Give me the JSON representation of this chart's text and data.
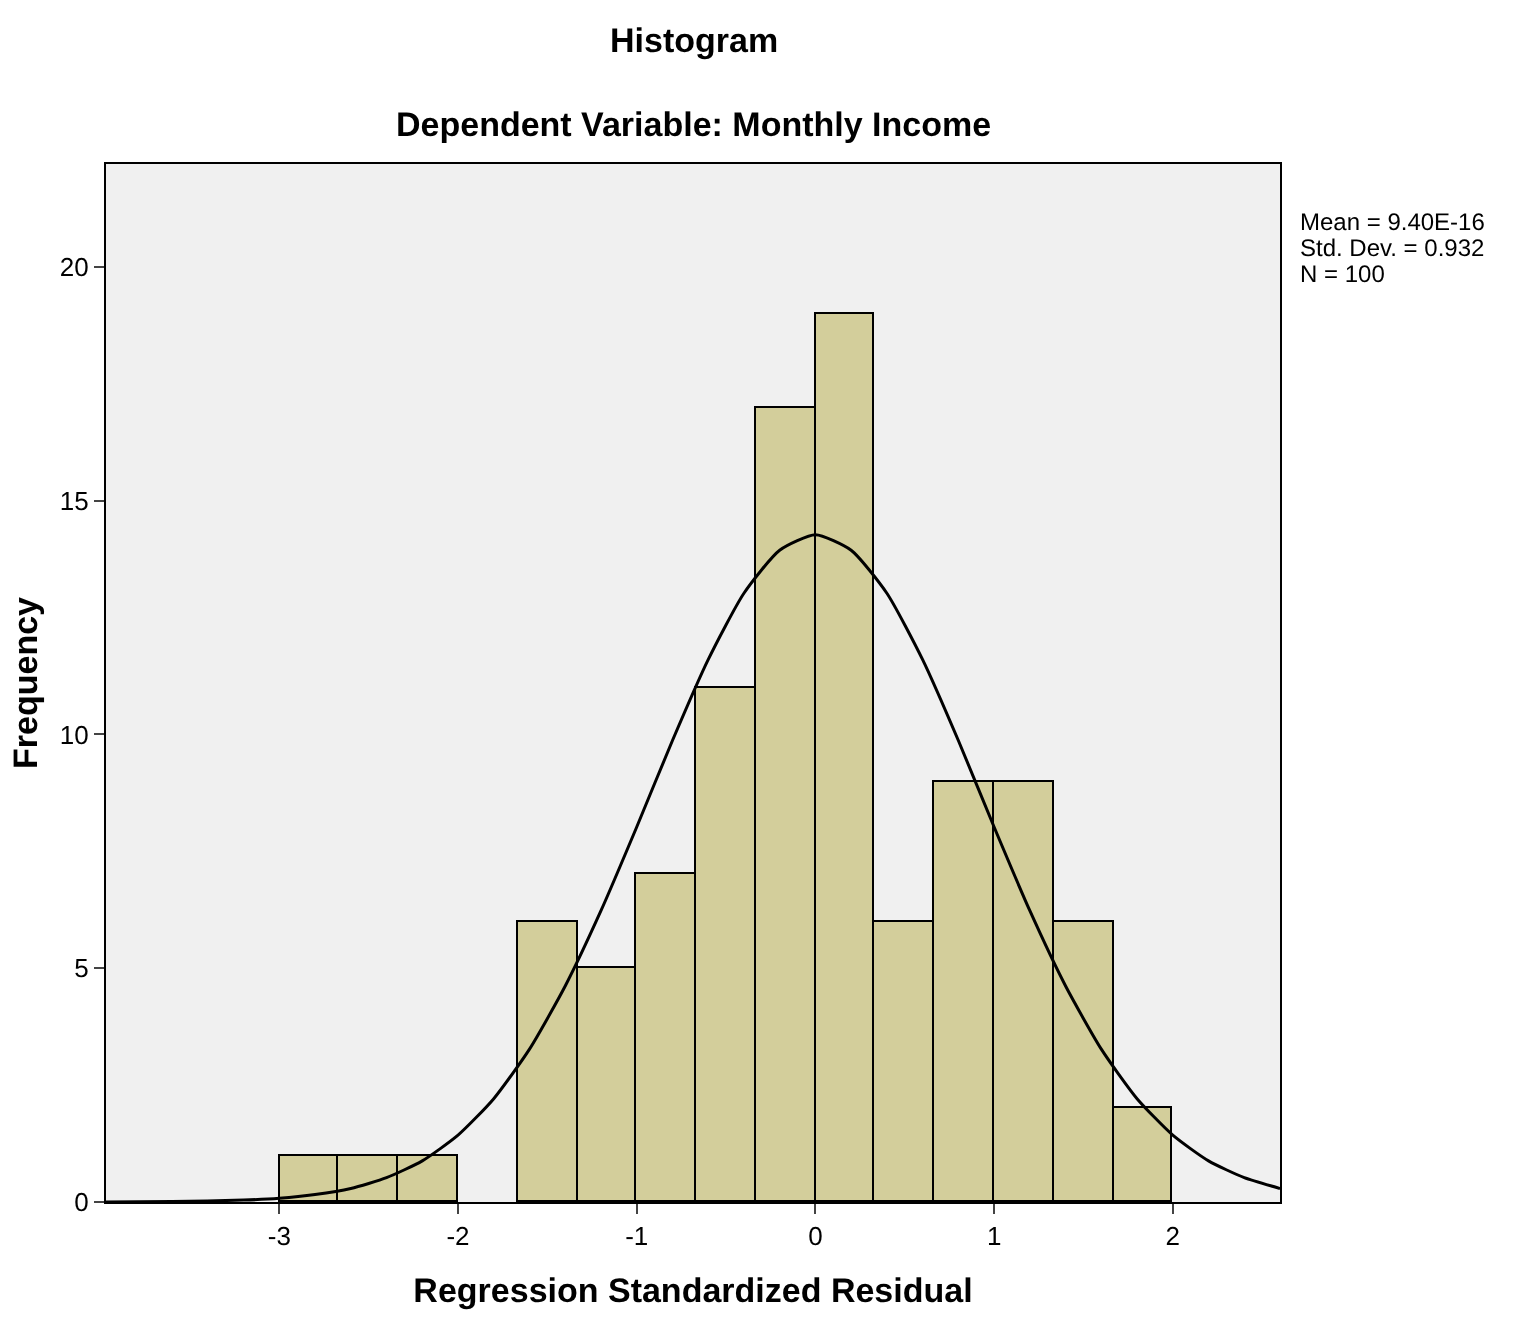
{
  "chart_data": {
    "type": "histogram",
    "title": "Histogram",
    "subtitle": "Dependent Variable: Monthly Income",
    "xlabel": "Regression Standardized Residual",
    "ylabel": "Frequency",
    "bins": [
      -3,
      -2.667,
      -2.333,
      -2,
      -1.667,
      -1.333,
      -1,
      -0.667,
      -0.333,
      0,
      0.333,
      0.667,
      1,
      1.333,
      1.667,
      2
    ],
    "series": [
      {
        "type": "histogram",
        "color": "#d3ce9b",
        "values": [
          1,
          1,
          1,
          0,
          6,
          5,
          7,
          11,
          17,
          19,
          6,
          9,
          9,
          6,
          2
        ]
      },
      {
        "type": "line",
        "color": "#000000",
        "x": [
          -3.97,
          -3.6,
          -3.2,
          -3,
          -2.8,
          -2.6,
          -2.4,
          -2.2,
          -2,
          -1.8,
          -1.6,
          -1.4,
          -1.2,
          -1,
          -0.8,
          -0.6,
          -0.4,
          -0.2,
          0,
          0.2,
          0.4,
          0.6,
          0.8,
          1,
          1.2,
          1.4,
          1.6,
          1.8,
          2,
          2.2,
          2.4,
          2.6
        ],
        "values": [
          0,
          0.01,
          0.04,
          0.08,
          0.16,
          0.29,
          0.52,
          0.88,
          1.43,
          2.21,
          3.27,
          4.62,
          6.23,
          8.02,
          9.87,
          11.6,
          13.02,
          13.94,
          14.27,
          13.94,
          13.02,
          11.6,
          9.87,
          8.02,
          6.23,
          4.62,
          3.27,
          2.21,
          1.43,
          0.88,
          0.52,
          0.29
        ]
      }
    ],
    "xlim": [
      -3.97,
      2.6
    ],
    "xticks": [
      -3,
      -2,
      -1,
      0,
      1,
      2
    ],
    "ylim": [
      0,
      22.2
    ],
    "yticks": [
      0,
      5,
      10,
      15,
      20
    ],
    "grid": false,
    "marker": "none",
    "line_style": "solid",
    "annotations": [
      "Mean = 9.40E-16",
      "Std. Dev. = 0.932",
      "N = 100"
    ]
  }
}
